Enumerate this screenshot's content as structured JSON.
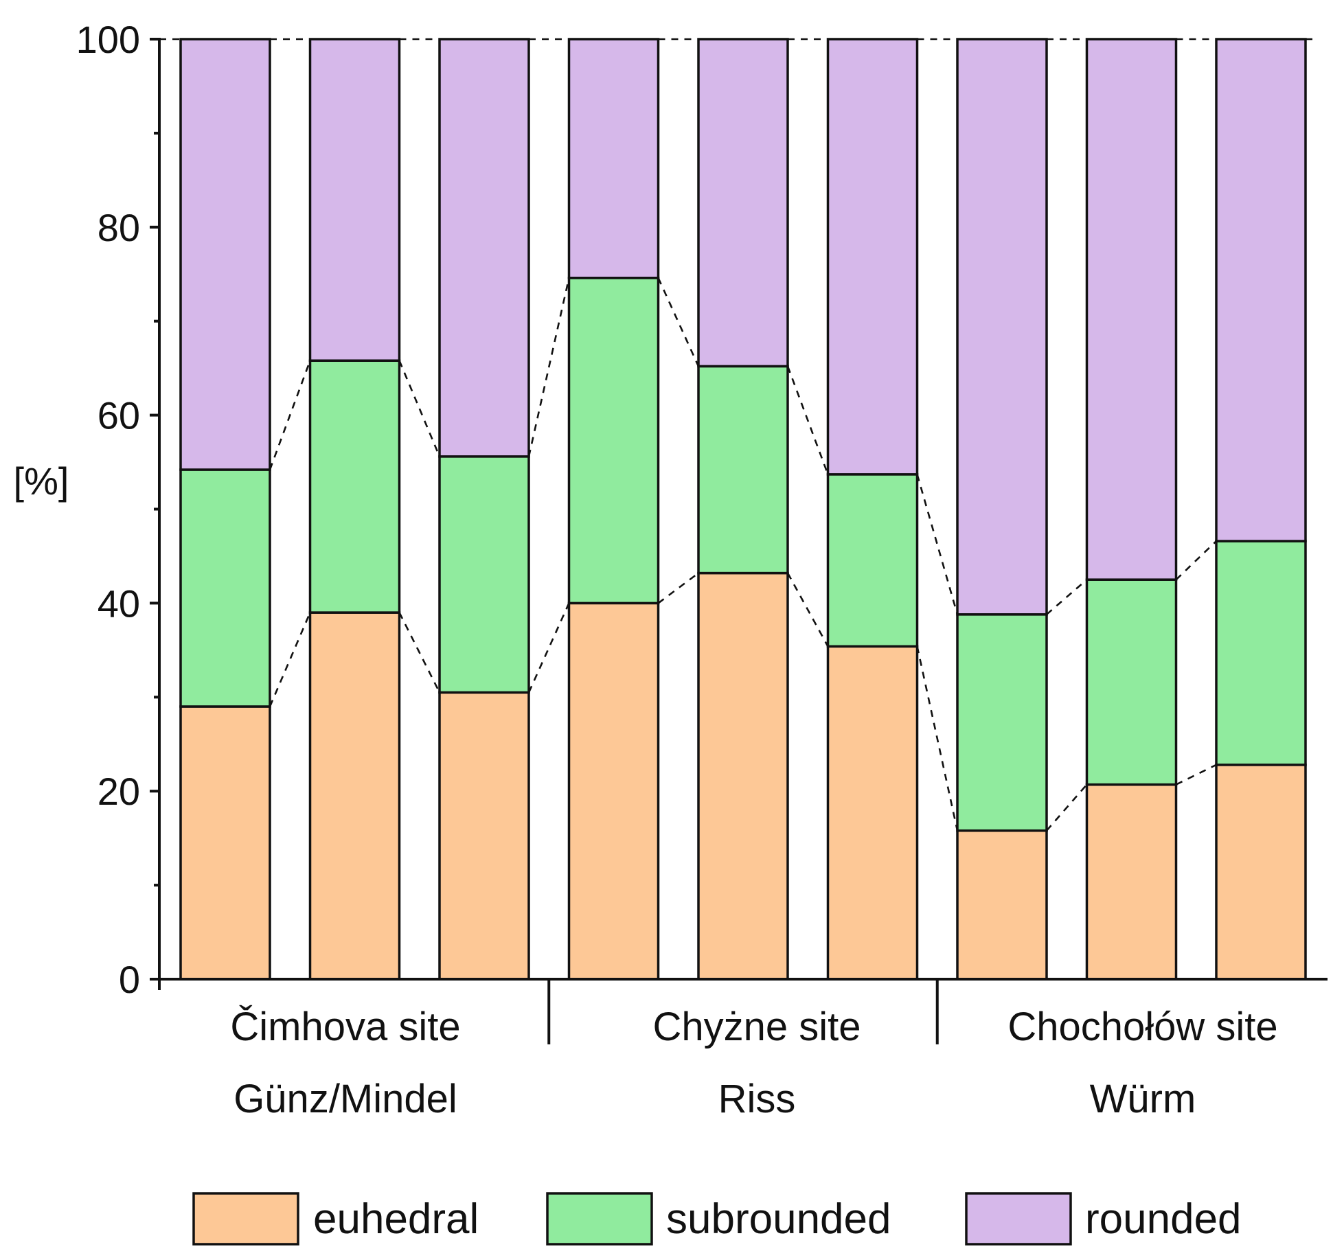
{
  "chart_data": {
    "type": "stacked-bar",
    "ylabel": "[%]",
    "ylim": [
      0,
      100
    ],
    "yticks": [
      "0",
      "20",
      "40",
      "60",
      "80",
      "100"
    ],
    "groups": [
      {
        "site": "Čimhova site",
        "period": "Günz/Mindel",
        "bars": 3
      },
      {
        "site": "Chyżne site",
        "period": "Riss",
        "bars": 3
      },
      {
        "site": "Chochołów site",
        "period": "Würm",
        "bars": 3
      }
    ],
    "series": [
      {
        "name": "euhedral",
        "color": "#fdc896",
        "values": [
          29,
          39,
          30.5,
          40,
          43.2,
          35.4,
          15.8,
          20.7,
          22.8
        ]
      },
      {
        "name": "subrounded",
        "color": "#90eb9e",
        "values": [
          25.2,
          26.8,
          25.1,
          34.6,
          22,
          18.3,
          23,
          21.8,
          23.8
        ]
      },
      {
        "name": "rounded",
        "color": "#d6b8ea",
        "values": [
          45.8,
          34.2,
          44.4,
          25.4,
          34.8,
          46.3,
          61.2,
          57.5,
          53.4
        ]
      }
    ],
    "connectors": "dashed lines link the stacked boundaries of adjacent bars",
    "legend": [
      "euhedral",
      "subrounded",
      "rounded"
    ]
  }
}
